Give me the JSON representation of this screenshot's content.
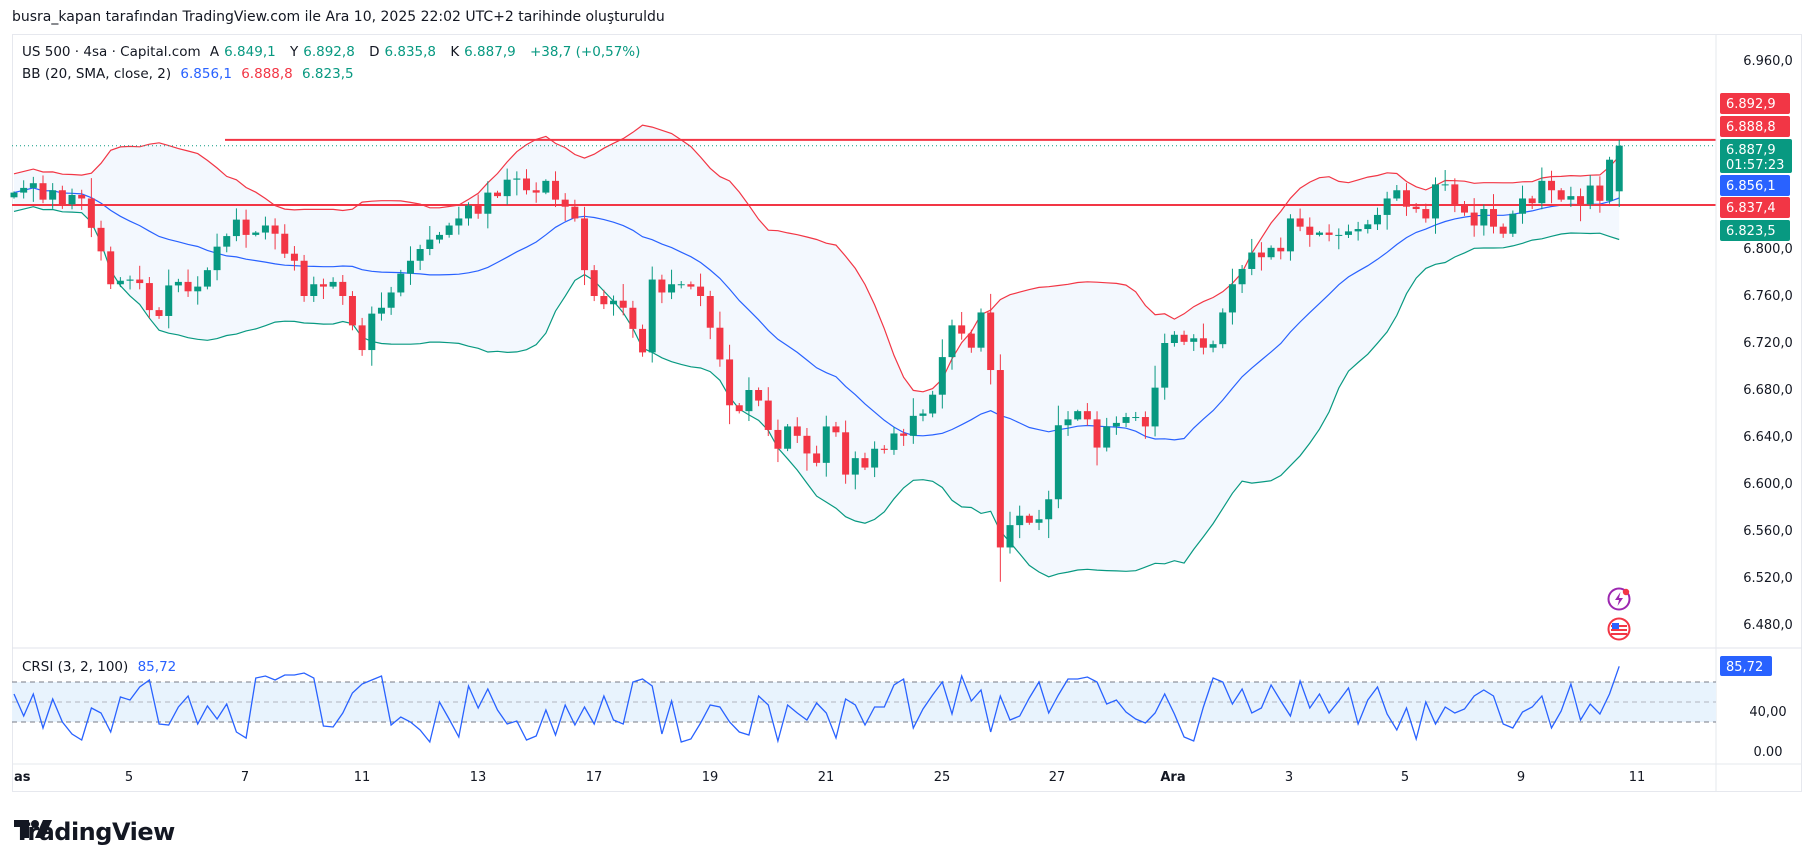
{
  "caption": "busra_kapan tarafından TradingView.com ile Ara 10, 2025 22:02 UTC+2 tarihinde oluşturuldu",
  "legend": {
    "symbol": "US 500 · 4sa · Capital.com",
    "open_label": "A",
    "open": "6.849,1",
    "high_label": "Y",
    "high": "6.892,8",
    "low_label": "D",
    "low": "6.835,8",
    "close_label": "K",
    "close": "6.887,9",
    "change": "+38,7 (+0,57%)",
    "bb_name": "BB (20, SMA, close, 2)",
    "bb_basis": "6.856,1",
    "bb_upper": "6.888,8",
    "bb_lower": "6.823,5",
    "crsi_name": "CRSI (3, 2, 100)",
    "crsi_value": "85,72"
  },
  "price_axis": {
    "ticks": [
      "6.960,0",
      "6.800,0",
      "6.760,0",
      "6.720,0",
      "6.680,0",
      "6.640,0",
      "6.600,0",
      "6.560,0",
      "6.520,0",
      "6.480,0"
    ],
    "tick_values": [
      6960,
      6800,
      6760,
      6720,
      6680,
      6640,
      6600,
      6560,
      6520,
      6480
    ],
    "tags": [
      {
        "label": "6.892,9",
        "value": 6892.9,
        "color": "#f23645"
      },
      {
        "label": "6.888,8",
        "value": 6888.8,
        "color": "#f23645"
      },
      {
        "label": "6.887,9",
        "sub": "01:57:23",
        "value": 6887.9,
        "color": "#089981"
      },
      {
        "label": "6.856,1",
        "value": 6856.1,
        "color": "#2962ff"
      },
      {
        "label": "6.837,4",
        "value": 6837.4,
        "color": "#f23645"
      },
      {
        "label": "6.823,5",
        "value": 6823.5,
        "color": "#089981"
      }
    ]
  },
  "crsi_axis": {
    "ticks": [
      "40,00",
      "0.00"
    ],
    "tick_values": [
      40,
      0
    ],
    "tag": "85,72",
    "tag_value": 85.72
  },
  "time_axis": {
    "ticks": [
      "as",
      "5",
      "7",
      "11",
      "13",
      "17",
      "19",
      "21",
      "25",
      "27",
      "Ara",
      "3",
      "5",
      "9",
      "11"
    ],
    "bold": [
      "as",
      "Ara"
    ]
  },
  "horizontal_lines": [
    {
      "name": "resistance-line",
      "value": 6892.9,
      "color": "#f23645"
    },
    {
      "name": "support-line",
      "value": 6837.4,
      "color": "#f23645"
    }
  ],
  "logo_text": "TradingView",
  "colors": {
    "up": "#089981",
    "down": "#f23645",
    "basis": "#2962ff",
    "upper": "#f23645",
    "lower": "#089981",
    "band_fill": "#f3f8fe",
    "crsi": "#2962ff"
  },
  "chart_data": {
    "type": "candlestick",
    "title": "US 500 · 4sa · Capital.com",
    "ylim": [
      6470,
      6975
    ],
    "xlabel": "",
    "ylabel": "",
    "closes": [
      6848,
      6852,
      6856,
      6842,
      6850,
      6838,
      6846,
      6843,
      6818,
      6798,
      6770,
      6773,
      6774,
      6771,
      6748,
      6743,
      6769,
      6772,
      6764,
      6768,
      6782,
      6802,
      6811,
      6825,
      6812,
      6814,
      6820,
      6813,
      6796,
      6790,
      6760,
      6770,
      6768,
      6772,
      6760,
      6735,
      6714,
      6745,
      6750,
      6763,
      6779,
      6790,
      6800,
      6808,
      6812,
      6820,
      6826,
      6837,
      6830,
      6848,
      6845,
      6859,
      6860,
      6850,
      6848,
      6858,
      6842,
      6836,
      6826,
      6782,
      6760,
      6753,
      6756,
      6750,
      6732,
      6712,
      6774,
      6763,
      6770,
      6770,
      6768,
      6760,
      6733,
      6706,
      6667,
      6662,
      6680,
      6671,
      6646,
      6630,
      6649,
      6641,
      6626,
      6618,
      6649,
      6644,
      6608,
      6622,
      6614,
      6630,
      6629,
      6643,
      6641,
      6658,
      6660,
      6676,
      6708,
      6735,
      6728,
      6716,
      6746,
      6697,
      6546,
      6565,
      6573,
      6567,
      6570,
      6587,
      6650,
      6655,
      6662,
      6655,
      6631,
      6649,
      6652,
      6657,
      6657,
      6649,
      6682,
      6720,
      6727,
      6721,
      6724,
      6716,
      6719,
      6746,
      6770,
      6783,
      6797,
      6793,
      6801,
      6798,
      6826,
      6819,
      6812,
      6814,
      6812,
      6812,
      6815,
      6817,
      6821,
      6829,
      6843,
      6850,
      6836,
      6834,
      6826,
      6855,
      6855,
      6838,
      6831,
      6820,
      6834,
      6819,
      6813,
      6830,
      6843,
      6839,
      6858,
      6850,
      6842,
      6845,
      6838,
      6854,
      6841,
      6876,
      6887.9
    ],
    "series_note": "OHLC approximated from the rendered candlesticks; close values listed, open = previous close",
    "bb_period": 20,
    "bb_mult": 2,
    "bb_last": {
      "basis": 6856.1,
      "upper": 6888.8,
      "lower": 6823.5
    },
    "crsi": [
      58,
      36,
      58,
      24,
      53,
      30,
      18,
      12,
      44,
      39,
      20,
      55,
      52,
      65,
      72,
      28,
      27,
      45,
      56,
      28,
      46,
      33,
      48,
      20,
      14,
      74,
      76,
      72,
      77,
      77,
      79,
      74,
      26,
      25,
      39,
      59,
      68,
      72,
      76,
      27,
      35,
      30,
      22,
      10,
      50,
      33,
      15,
      66,
      44,
      63,
      42,
      28,
      31,
      12,
      16,
      42,
      17,
      47,
      27,
      45,
      28,
      56,
      32,
      28,
      70,
      73,
      66,
      18,
      51,
      10,
      13,
      29,
      47,
      45,
      30,
      20,
      17,
      56,
      47,
      11,
      47,
      39,
      32,
      49,
      39,
      14,
      53,
      47,
      27,
      45,
      45,
      67,
      73,
      24,
      43,
      57,
      70,
      38,
      76,
      51,
      62,
      20,
      56,
      32,
      36,
      54,
      70,
      39,
      57,
      73,
      73,
      75,
      70,
      48,
      52,
      40,
      33,
      29,
      39,
      58,
      38,
      15,
      11,
      45,
      74,
      70,
      48,
      63,
      39,
      44,
      67,
      51,
      36,
      71,
      44,
      58,
      39,
      51,
      64,
      28,
      52,
      65,
      38,
      22,
      44,
      13,
      50,
      28,
      45,
      39,
      43,
      56,
      62,
      56,
      28,
      24,
      40,
      45,
      56,
      24,
      41,
      68,
      32,
      48,
      38,
      58,
      85.72
    ],
    "crsi_levels": [
      70,
      50,
      30
    ],
    "crsi_ylim": [
      -10,
      100
    ]
  }
}
